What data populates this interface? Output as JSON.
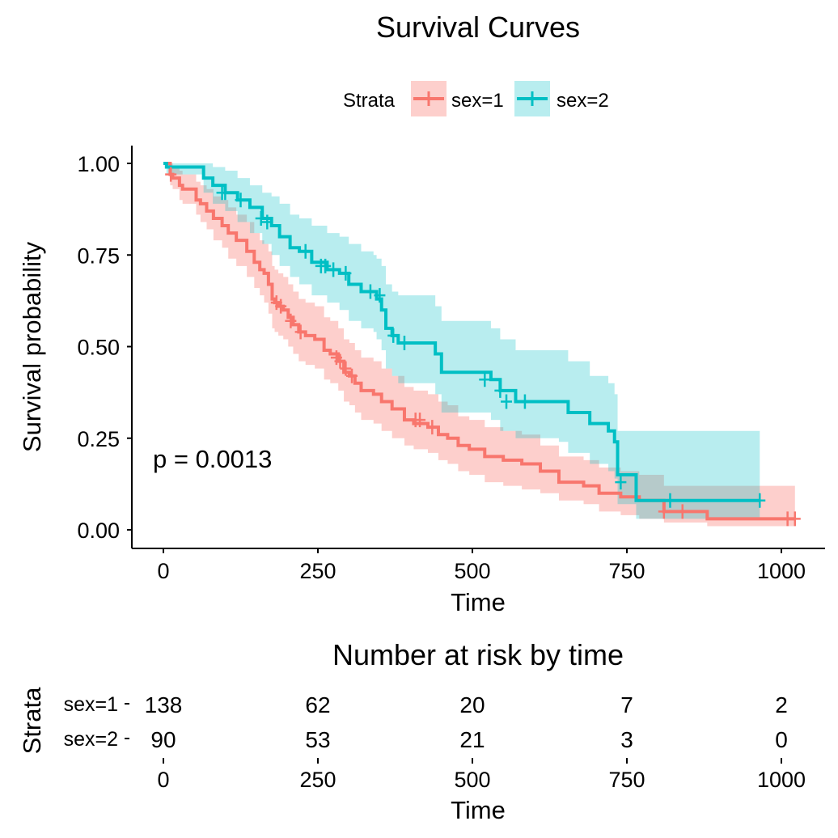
{
  "chart_data": [
    {
      "type": "line",
      "title": "Survival Curves",
      "xlabel": "Time",
      "ylabel": "Survival probability",
      "xlim": [
        0,
        1022
      ],
      "ylim": [
        0,
        1
      ],
      "xticks": [
        0,
        250,
        500,
        750,
        1000
      ],
      "xtick_labels": [
        "0",
        "250",
        "500",
        "750",
        "1000"
      ],
      "yticks": [
        0,
        0.25,
        0.5,
        0.75,
        1
      ],
      "ytick_labels": [
        "0.00",
        "0.25",
        "0.50",
        "0.75",
        "1.00"
      ],
      "grid": false,
      "legend": {
        "title": "Strata",
        "position": "top"
      },
      "annotation": "p = 0.0013",
      "colors": {
        "sex1": "#F8766D",
        "sex2": "#00BFC4"
      },
      "series": [
        {
          "name": "sex=1",
          "color": "#F8766D",
          "x": [
            0,
            11,
            15,
            26,
            31,
            53,
            60,
            70,
            81,
            95,
            105,
            118,
            135,
            147,
            156,
            163,
            170,
            176,
            180,
            186,
            194,
            202,
            210,
            219,
            230,
            245,
            260,
            270,
            283,
            292,
            301,
            310,
            320,
            340,
            353,
            370,
            390,
            405,
            428,
            445,
            460,
            477,
            495,
            520,
            550,
            580,
            610,
            640,
            680,
            705,
            740,
            770,
            810,
            880,
            1022
          ],
          "y": [
            1,
            0.97,
            0.96,
            0.94,
            0.93,
            0.9,
            0.89,
            0.87,
            0.85,
            0.83,
            0.81,
            0.79,
            0.76,
            0.73,
            0.71,
            0.7,
            0.67,
            0.63,
            0.62,
            0.61,
            0.6,
            0.58,
            0.56,
            0.54,
            0.53,
            0.52,
            0.49,
            0.48,
            0.46,
            0.43,
            0.42,
            0.4,
            0.38,
            0.37,
            0.35,
            0.33,
            0.3,
            0.29,
            0.28,
            0.26,
            0.25,
            0.23,
            0.22,
            0.2,
            0.19,
            0.18,
            0.16,
            0.13,
            0.12,
            0.1,
            0.09,
            0.08,
            0.05,
            0.03,
            0.03
          ],
          "ci_lower": [
            1,
            0.94,
            0.93,
            0.9,
            0.89,
            0.86,
            0.84,
            0.82,
            0.79,
            0.77,
            0.74,
            0.72,
            0.69,
            0.66,
            0.64,
            0.62,
            0.59,
            0.55,
            0.54,
            0.53,
            0.52,
            0.5,
            0.48,
            0.46,
            0.45,
            0.44,
            0.41,
            0.4,
            0.38,
            0.35,
            0.34,
            0.32,
            0.3,
            0.29,
            0.27,
            0.25,
            0.23,
            0.22,
            0.21,
            0.19,
            0.18,
            0.16,
            0.15,
            0.13,
            0.12,
            0.11,
            0.1,
            0.08,
            0.07,
            0.05,
            0.04,
            0.03,
            0.02,
            0.01,
            0.01
          ],
          "ci_upper": [
            1,
            1,
            0.99,
            0.98,
            0.97,
            0.95,
            0.94,
            0.93,
            0.91,
            0.9,
            0.88,
            0.86,
            0.84,
            0.81,
            0.79,
            0.78,
            0.76,
            0.72,
            0.71,
            0.7,
            0.69,
            0.67,
            0.65,
            0.63,
            0.62,
            0.61,
            0.58,
            0.57,
            0.55,
            0.52,
            0.51,
            0.49,
            0.47,
            0.46,
            0.44,
            0.42,
            0.39,
            0.38,
            0.37,
            0.35,
            0.34,
            0.31,
            0.3,
            0.28,
            0.27,
            0.26,
            0.23,
            0.2,
            0.19,
            0.17,
            0.16,
            0.15,
            0.12,
            0.12,
            0.12
          ],
          "censored": [
            [
              12,
              0.97
            ],
            [
              183,
              0.62
            ],
            [
              190,
              0.61
            ],
            [
              206,
              0.57
            ],
            [
              222,
              0.54
            ],
            [
              280,
              0.47
            ],
            [
              286,
              0.46
            ],
            [
              295,
              0.44
            ],
            [
              305,
              0.42
            ],
            [
              408,
              0.3
            ],
            [
              415,
              0.3
            ],
            [
              435,
              0.28
            ],
            [
              810,
              0.05
            ],
            [
              840,
              0.05
            ],
            [
              1010,
              0.03
            ],
            [
              1022,
              0.03
            ]
          ]
        },
        {
          "name": "sex=2",
          "color": "#00BFC4",
          "x": [
            0,
            5,
            60,
            65,
            80,
            100,
            120,
            140,
            160,
            175,
            188,
            205,
            220,
            240,
            265,
            285,
            300,
            320,
            340,
            345,
            353,
            360,
            370,
            380,
            430,
            440,
            450,
            530,
            545,
            570,
            640,
            655,
            690,
            720,
            730,
            735,
            765,
            965
          ],
          "y": [
            1,
            0.99,
            0.99,
            0.96,
            0.94,
            0.92,
            0.9,
            0.88,
            0.85,
            0.83,
            0.8,
            0.77,
            0.76,
            0.73,
            0.71,
            0.7,
            0.67,
            0.65,
            0.65,
            0.63,
            0.6,
            0.55,
            0.53,
            0.51,
            0.51,
            0.48,
            0.43,
            0.41,
            0.38,
            0.35,
            0.35,
            0.32,
            0.29,
            0.27,
            0.24,
            0.15,
            0.08,
            0.08
          ],
          "ci_lower": [
            1,
            0.97,
            0.97,
            0.92,
            0.89,
            0.87,
            0.84,
            0.81,
            0.78,
            0.75,
            0.72,
            0.69,
            0.67,
            0.64,
            0.62,
            0.6,
            0.57,
            0.55,
            0.54,
            0.52,
            0.49,
            0.44,
            0.42,
            0.4,
            0.4,
            0.37,
            0.32,
            0.3,
            0.27,
            0.25,
            0.24,
            0.21,
            0.18,
            0.16,
            0.14,
            0.07,
            0.03,
            0.03
          ],
          "ci_upper": [
            1,
            1,
            1,
            1,
            0.99,
            0.98,
            0.96,
            0.94,
            0.92,
            0.91,
            0.89,
            0.86,
            0.85,
            0.83,
            0.81,
            0.8,
            0.78,
            0.76,
            0.75,
            0.74,
            0.72,
            0.67,
            0.65,
            0.64,
            0.64,
            0.61,
            0.57,
            0.55,
            0.52,
            0.49,
            0.49,
            0.46,
            0.42,
            0.4,
            0.37,
            0.27,
            0.27,
            0.27
          ],
          "censored": [
            [
              95,
              0.92
            ],
            [
              100,
              0.92
            ],
            [
              125,
              0.9
            ],
            [
              158,
              0.85
            ],
            [
              168,
              0.84
            ],
            [
              230,
              0.76
            ],
            [
              255,
              0.72
            ],
            [
              262,
              0.72
            ],
            [
              275,
              0.71
            ],
            [
              295,
              0.7
            ],
            [
              335,
              0.65
            ],
            [
              350,
              0.64
            ],
            [
              372,
              0.53
            ],
            [
              390,
              0.51
            ],
            [
              520,
              0.41
            ],
            [
              545,
              0.38
            ],
            [
              555,
              0.35
            ],
            [
              585,
              0.35
            ],
            [
              740,
              0.13
            ],
            [
              820,
              0.08
            ],
            [
              965,
              0.08
            ]
          ]
        }
      ]
    },
    {
      "type": "table",
      "title": "Number at risk by time",
      "xlabel": "Time",
      "ylabel": "Strata",
      "x": [
        0,
        250,
        500,
        750,
        1000
      ],
      "xtick_labels": [
        "0",
        "250",
        "500",
        "750",
        "1000"
      ],
      "rows": [
        {
          "name": "sex=1",
          "color": "#F8766D",
          "values": [
            "138",
            "62",
            "20",
            "7",
            "2"
          ]
        },
        {
          "name": "sex=2",
          "color": "#00BFC4",
          "values": [
            "90",
            "53",
            "21",
            "3",
            "0"
          ]
        }
      ]
    }
  ]
}
